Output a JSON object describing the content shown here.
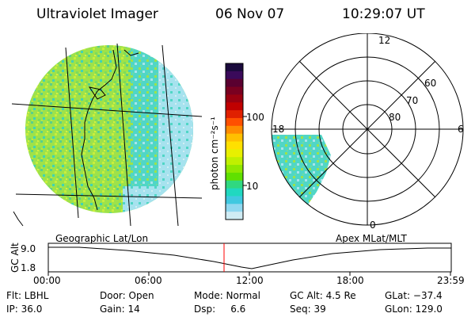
{
  "header": {
    "title": "Ultraviolet Imager",
    "date": "06 Nov 07",
    "time": "10:29:07 UT"
  },
  "colorbar": {
    "unit_label": "photon cm⁻²s⁻¹",
    "ticks": [
      "100",
      "10"
    ],
    "colors": [
      "#1a0a3c",
      "#3a0a5a",
      "#5a0030",
      "#7a0020",
      "#9a0010",
      "#c00000",
      "#e02000",
      "#ff5000",
      "#ff8c00",
      "#ffc000",
      "#ffe000",
      "#e8f000",
      "#c0f000",
      "#90e800",
      "#60e000",
      "#30d880",
      "#20d8c0",
      "#40c8e0",
      "#90d8f0",
      "#d0ecf4"
    ]
  },
  "geographic": {
    "label": "Geographic Lat/Lon"
  },
  "polar": {
    "label": "Apex  MLat/MLT",
    "lat_labels": [
      "60",
      "70",
      "80"
    ],
    "mlt_labels": {
      "top": "12",
      "left": "18",
      "right": "6",
      "bottom": "0"
    }
  },
  "timeline": {
    "axis_label": "GC Alt",
    "y_ticks": [
      "9.0",
      "1.8"
    ],
    "x_ticks": [
      "00:00",
      "06:00",
      "12:00",
      "18:00",
      "23:59"
    ],
    "current_time_fraction": 0.437
  },
  "info": {
    "row1": {
      "flt": "Flt: LBHL",
      "door": "Door: Open",
      "mode": "Mode: Normal",
      "gc_alt": "GC Alt: 4.5 Re",
      "glat": "GLat: −37.4"
    },
    "row2": {
      "ip": "IP: 36.0",
      "gain": "Gain: 14",
      "dsp": "Dsp:     6.6",
      "seq": "Seq: 39",
      "glon": "GLon: 129.0"
    }
  }
}
